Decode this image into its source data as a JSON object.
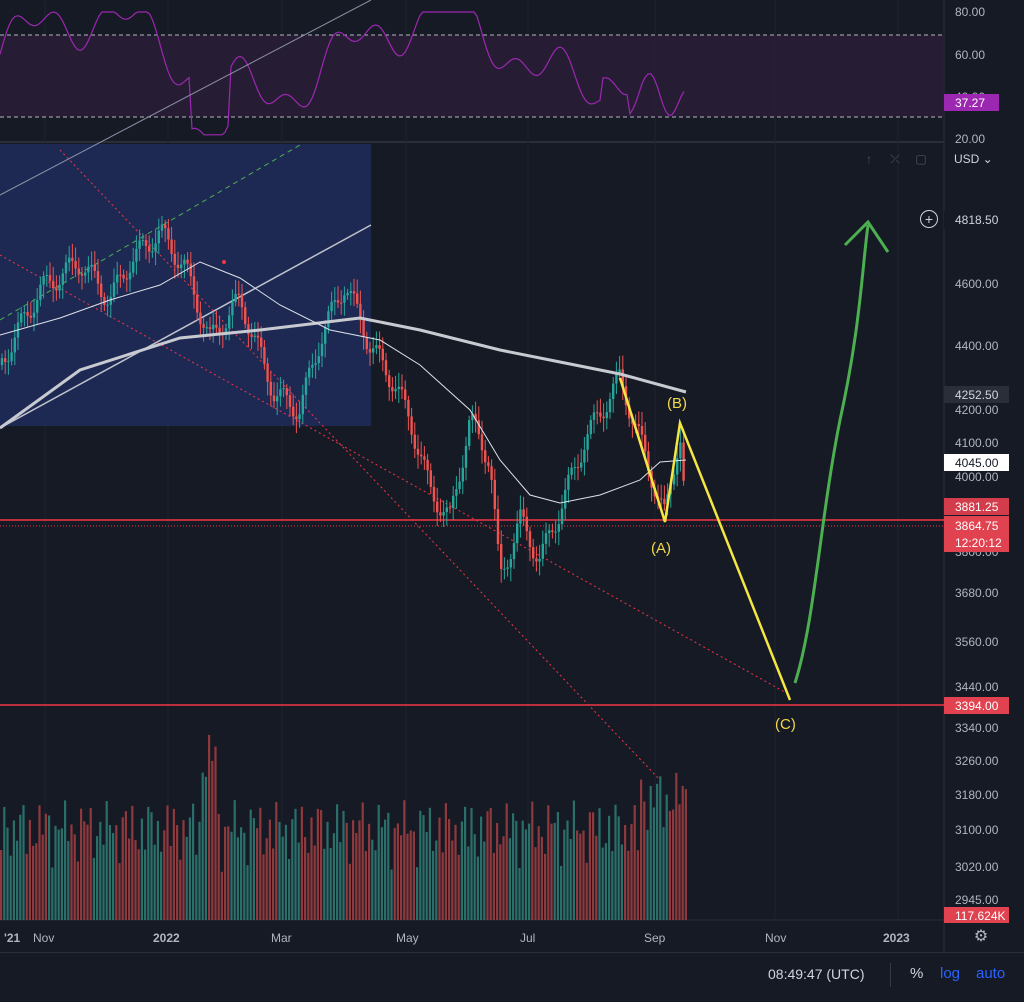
{
  "rsi_pane": {
    "axis_labels": [
      "80.00",
      "60.00",
      "40.00",
      "20.00"
    ],
    "current_value": "37.27",
    "line_color": "#9c27b0",
    "badge_color": "#9c27b0"
  },
  "toolbar": {
    "currency": "USD",
    "currency_chevron": "chevron-down-icon",
    "icons": [
      "arrow-up-icon",
      "collapse-icon",
      "maximize-icon"
    ]
  },
  "price_axis": {
    "labels": [
      "4600.00",
      "4400.00",
      "4200.00",
      "4100.00",
      "4000.00",
      "3680.00",
      "3560.00",
      "3440.00",
      "3340.00",
      "3260.00",
      "3180.00",
      "3100.00",
      "3020.00",
      "2945.00"
    ],
    "partial_label": "3800.00"
  },
  "price_tags": {
    "alert_target": "4818.50",
    "ma_long": "4252.50",
    "ma_short": "4045.00",
    "resistance": "3881.25",
    "last_price": "3864.75",
    "countdown": "12:20:12",
    "support": "3394.00",
    "volume": "117.624K"
  },
  "time_axis": {
    "labels": [
      "'21",
      "Nov",
      "2022",
      "Mar",
      "May",
      "Jul",
      "Sep",
      "Nov",
      "2023"
    ]
  },
  "wave_labels": {
    "a": "(A)",
    "b": "(B)",
    "c": "(C)"
  },
  "bottom_bar": {
    "time": "08:49:47 (UTC)",
    "percent": "%",
    "log": "log",
    "auto": "auto"
  },
  "colors": {
    "background": "#161a25",
    "up": "#26a69a",
    "down": "#ef5350",
    "projection_yellow": "#f5e642",
    "projection_green": "#4caf50",
    "level_red": "#f23645",
    "accent_blue": "#2962ff"
  }
}
